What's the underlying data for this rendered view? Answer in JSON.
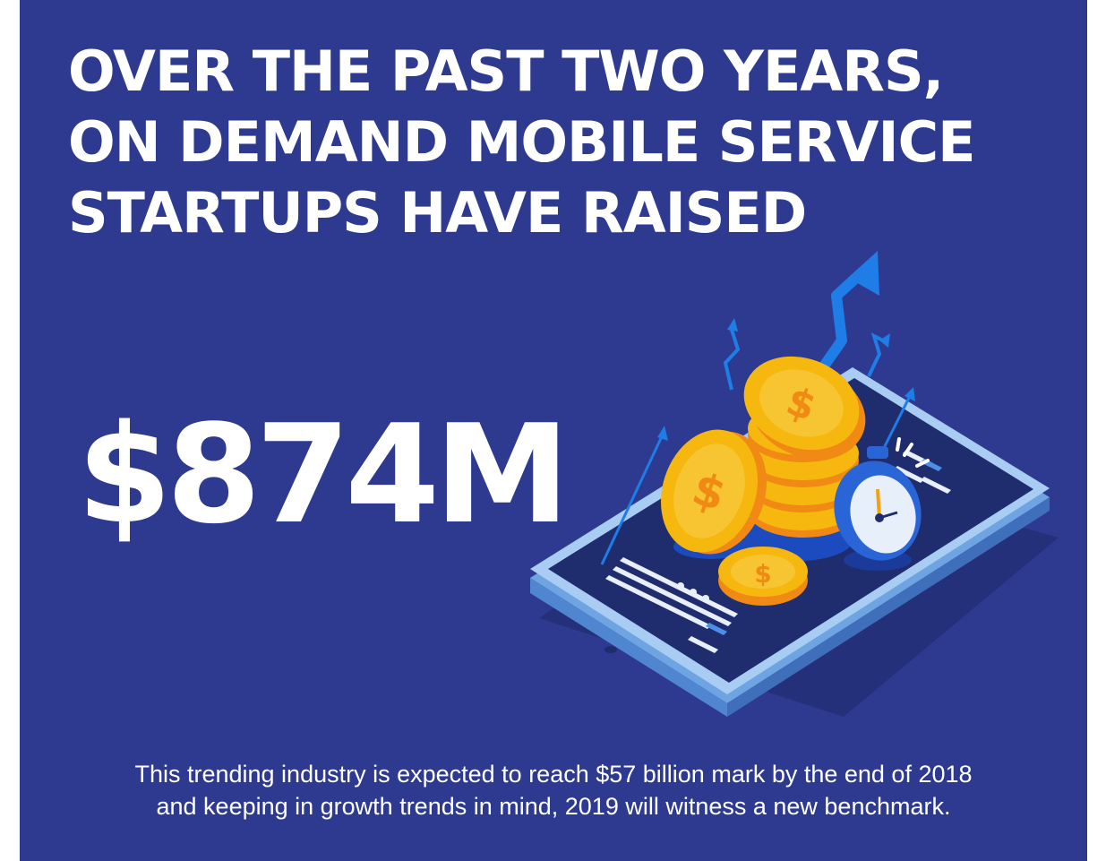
{
  "headline": {
    "line1": "OVER THE PAST TWO YEARS,",
    "line2": "ON DEMAND MOBILE SERVICE",
    "line3": "STARTUPS HAVE RAISED"
  },
  "stat": {
    "value": "$874M"
  },
  "caption": {
    "line1": "This trending industry is expected to reach $57 billion mark by the end of 2018",
    "line2": "and keeping in growth trends in mind, 2019 will witness a new benchmark."
  },
  "colors": {
    "background": "#2e3a8f",
    "text": "#ffffff",
    "coin_gold": "#f6b80f",
    "coin_orange": "#f08a14",
    "arrow_blue": "#1e7de6",
    "phone_frame": "#9fc6f0",
    "phone_screen": "#1f2d6e"
  },
  "illustration": {
    "icons": [
      "smartphone-icon",
      "coin-stack-icon",
      "dollar-coin-icon",
      "stopwatch-icon",
      "growth-arrow-icon"
    ]
  }
}
